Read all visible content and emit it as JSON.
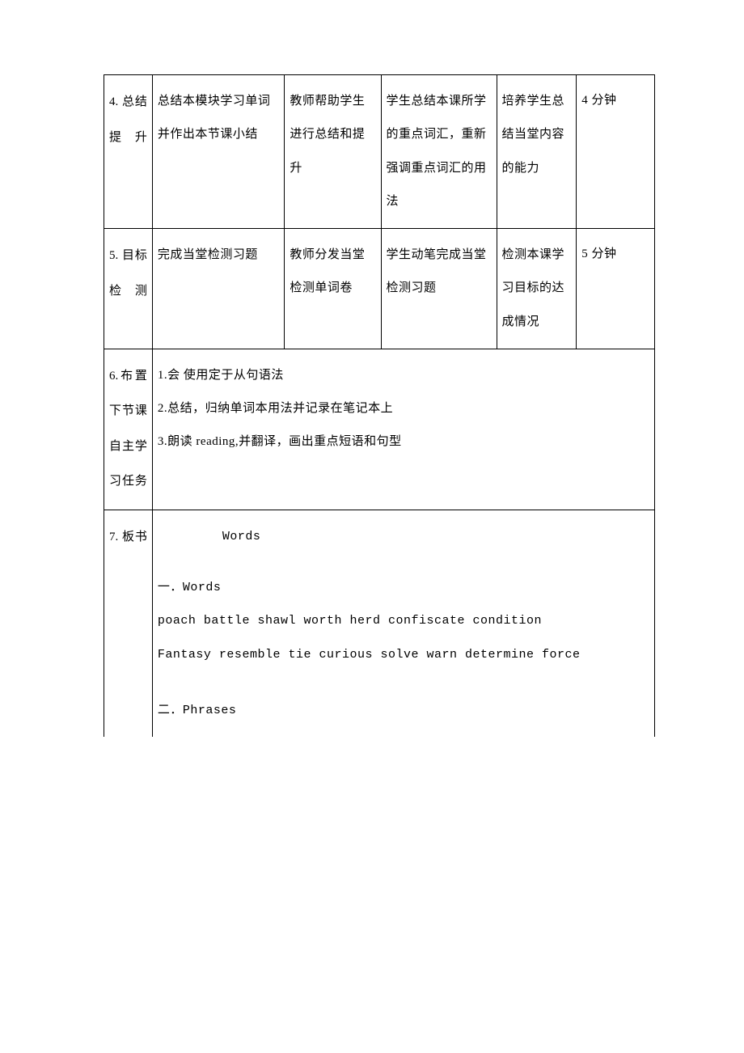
{
  "colWidths": [
    "8.8%",
    "24%",
    "17.5%",
    "21%",
    "14.5%",
    "14.2%"
  ],
  "rows": [
    {
      "label": "4. 总结提升",
      "c2": "总结本模块学习单词并作出本节课小结",
      "c3": "教师帮助学生进行总结和提升",
      "c4": "学生总结本课所学的重点词汇，重新强调重点词汇的用法",
      "c5": "培养学生总结当堂内容的能力",
      "c6": "4 分钟"
    },
    {
      "label": "5. 目标检测",
      "c2": "完成当堂检测习题",
      "c3": "教师分发当堂检测单词卷",
      "c4": "学生动笔完成当堂检测习题",
      "c5": "检测本课学习目标的达成情况",
      "c6": "5 分钟"
    }
  ],
  "row6": {
    "label": "6.布置下节课自主学习任务",
    "lines": [
      "1.会 使用定于从句语法",
      "2.总结，归纳单词本用法并记录在笔记本上",
      "3.朗读 reading,并翻译，画出重点短语和句型"
    ]
  },
  "row7": {
    "label": "7. 板书",
    "heading": "Words",
    "sectionA_title": "一．Words",
    "sectionA_line1": "poach battle shawl   worth   herd confiscate   condition",
    "sectionA_line2": "Fantasy resemble tie curious solve warn   determine force",
    "sectionB_title": "二．Phrases"
  }
}
